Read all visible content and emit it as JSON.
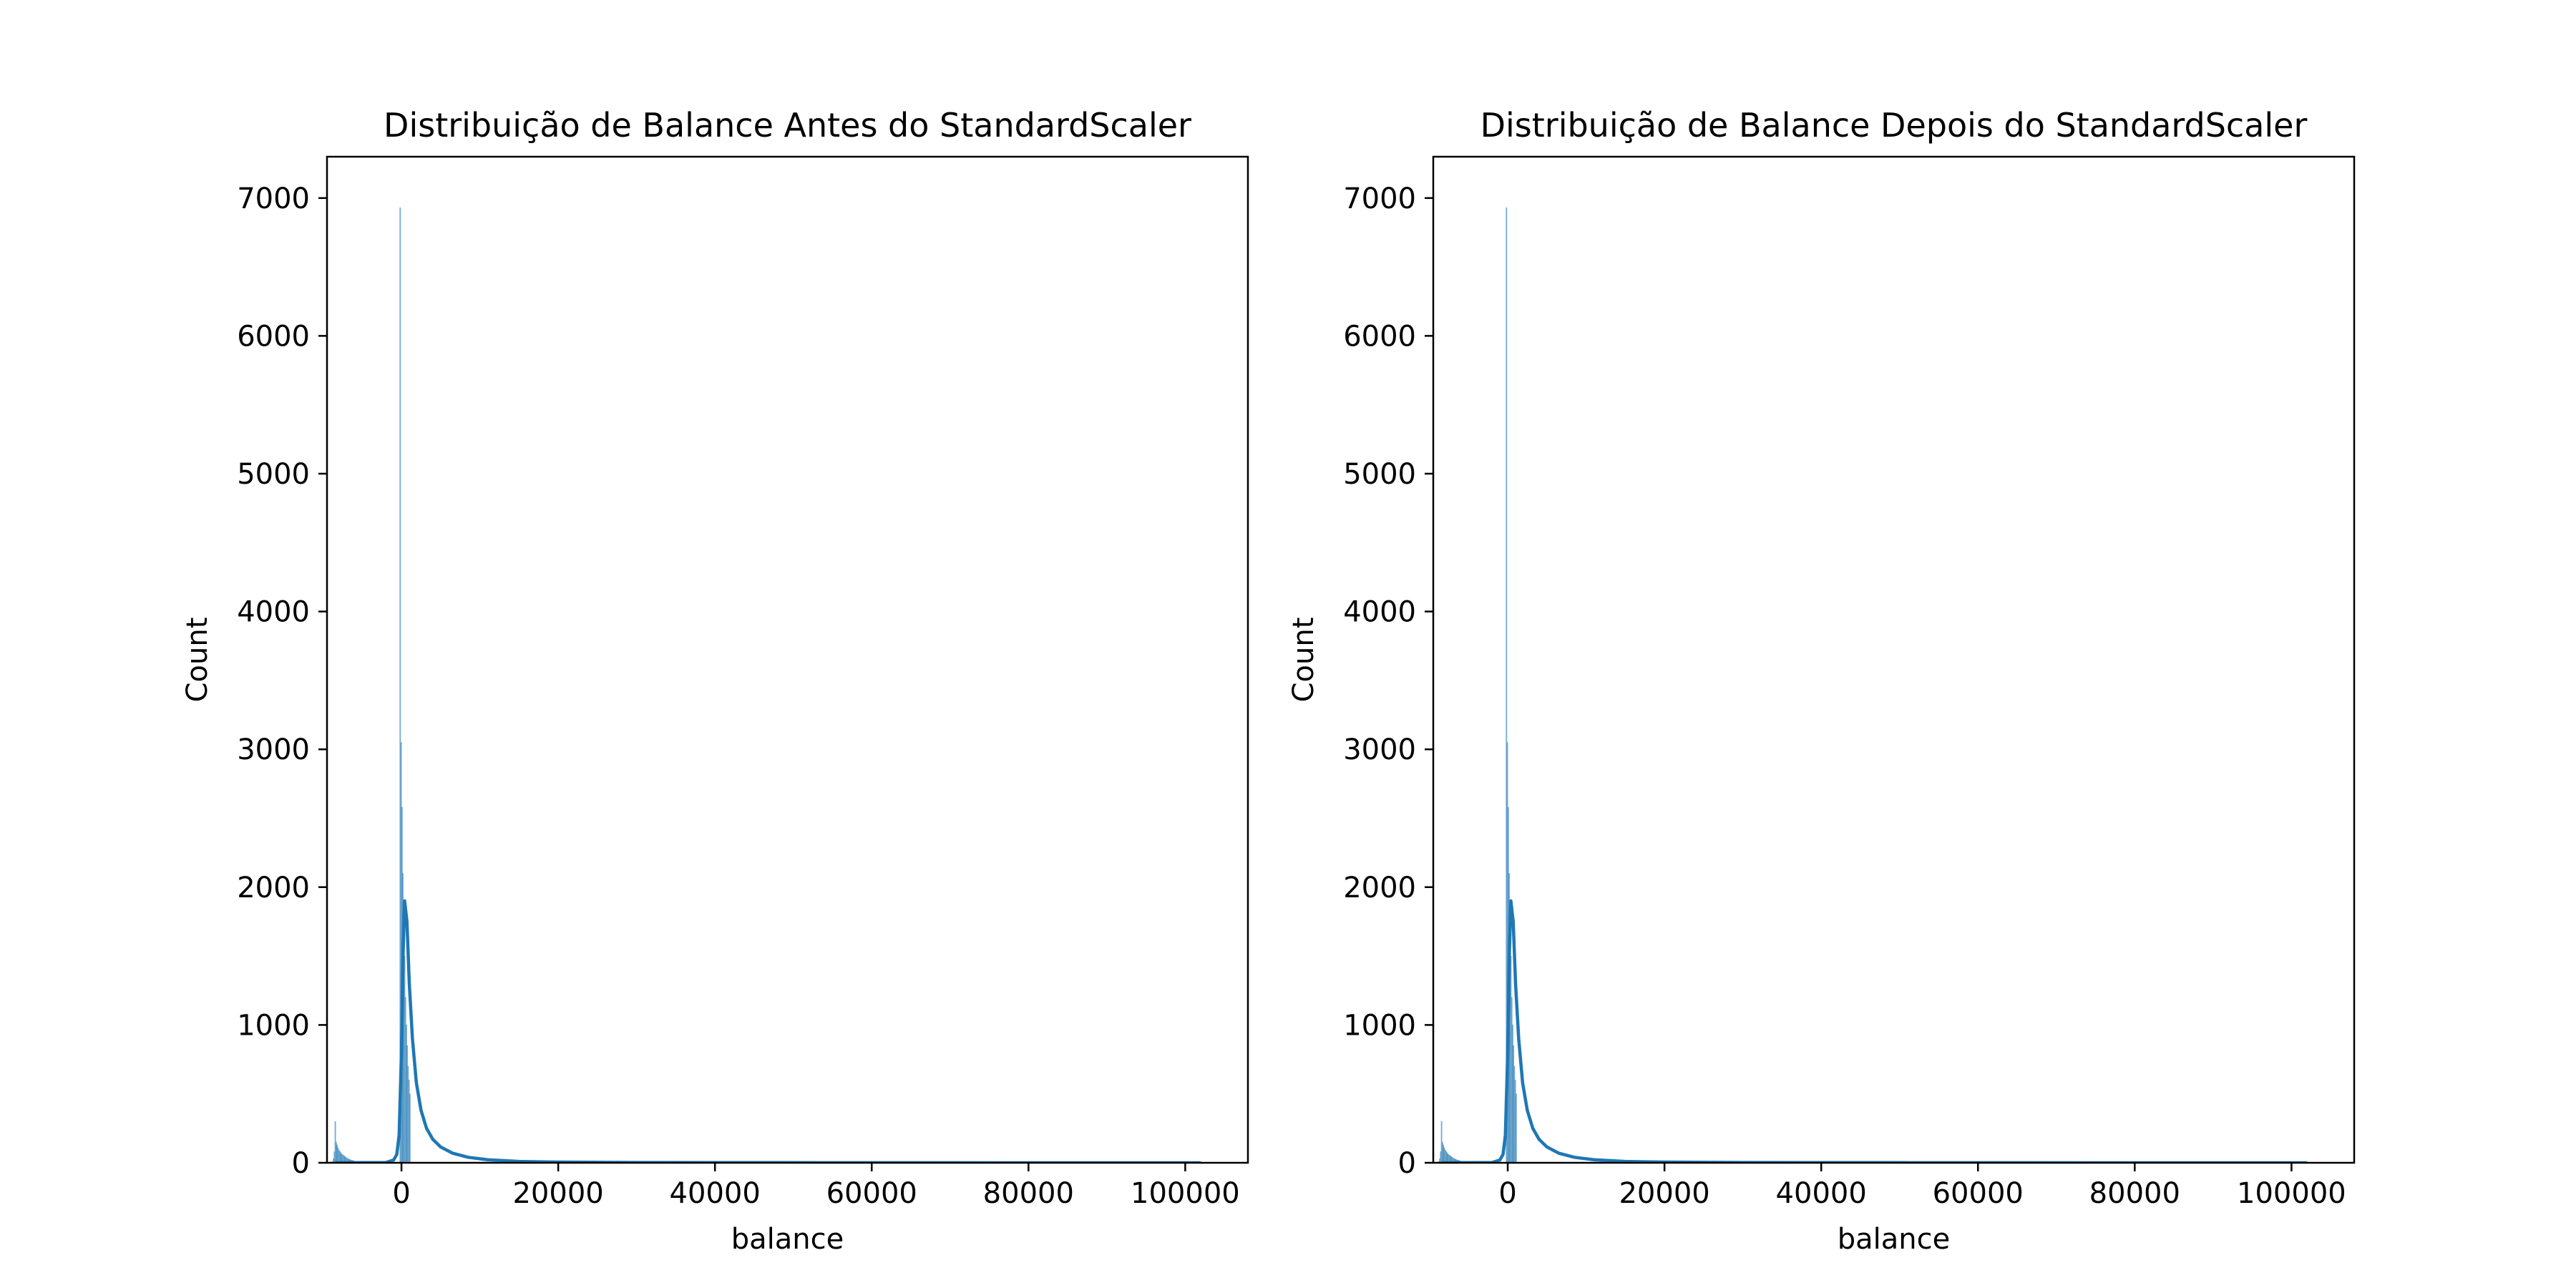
{
  "chart_data": [
    {
      "type": "histogram",
      "title": "Distribuição de Balance Antes do StandardScaler",
      "xlabel": "balance",
      "ylabel": "Count",
      "xlim": [
        -9500,
        108000
      ],
      "ylim": [
        0,
        7300
      ],
      "xticks": [
        0,
        20000,
        40000,
        60000,
        80000,
        100000
      ],
      "yticks": [
        0,
        1000,
        2000,
        3000,
        4000,
        5000,
        6000,
        7000
      ],
      "grid": false,
      "legend": "none",
      "color": "#1f77b4",
      "bins": {
        "start": -8500,
        "width": 112,
        "counts": {
          "-4": 4,
          "-3": 10,
          "-2": 30,
          "-1": 80,
          "0": 300,
          "1": 150,
          "2": 130,
          "3": 110,
          "4": 95,
          "5": 85,
          "6": 75,
          "7": 65,
          "8": 60,
          "9": 55,
          "10": 50,
          "11": 45,
          "12": 40,
          "13": 35,
          "14": 30,
          "15": 28,
          "16": 25,
          "17": 22,
          "18": 20,
          "19": 18,
          "20": 16,
          "21": 14,
          "22": 12,
          "23": 11,
          "24": 10,
          "25": 9,
          "26": 8,
          "27": 7,
          "28": 6,
          "29": 5,
          "30": 5,
          "31": 4,
          "32": 4,
          "33": 3,
          "34": 3,
          "35": 3,
          "36": 2,
          "37": 2,
          "38": 2,
          "39": 2,
          "40": 2,
          "74": 6930,
          "75": 3050,
          "76": 2580,
          "77": 2100,
          "78": 1850,
          "79": 1500,
          "80": 1200,
          "81": 1000,
          "82": 850,
          "83": 700,
          "84": 600,
          "85": 500
        }
      },
      "kde": {
        "x": [
          -8500,
          -2000,
          -1000,
          -600,
          -300,
          0,
          200,
          400,
          700,
          1000,
          1400,
          1900,
          2500,
          3200,
          4000,
          5000,
          6500,
          8500,
          11000,
          15000,
          20000,
          30000,
          50000,
          80000,
          102000
        ],
        "y": [
          0,
          2,
          20,
          60,
          200,
          800,
          1500,
          1900,
          1750,
          1300,
          900,
          580,
          380,
          250,
          170,
          115,
          70,
          40,
          22,
          10,
          5,
          2,
          1,
          0,
          0
        ]
      }
    },
    {
      "type": "histogram",
      "title": "Distribuição de Balance Depois do StandardScaler",
      "xlabel": "balance",
      "ylabel": "Count",
      "xlim": [
        -9500,
        108000
      ],
      "ylim": [
        0,
        7300
      ],
      "xticks": [
        0,
        20000,
        40000,
        60000,
        80000,
        100000
      ],
      "yticks": [
        0,
        1000,
        2000,
        3000,
        4000,
        5000,
        6000,
        7000
      ],
      "grid": false,
      "legend": "none",
      "color": "#1f77b4",
      "bins": {
        "start": -8500,
        "width": 112,
        "counts": {
          "-4": 4,
          "-3": 10,
          "-2": 30,
          "-1": 80,
          "0": 300,
          "1": 150,
          "2": 130,
          "3": 110,
          "4": 95,
          "5": 85,
          "6": 75,
          "7": 65,
          "8": 60,
          "9": 55,
          "10": 50,
          "11": 45,
          "12": 40,
          "13": 35,
          "14": 30,
          "15": 28,
          "16": 25,
          "17": 22,
          "18": 20,
          "19": 18,
          "20": 16,
          "21": 14,
          "22": 12,
          "23": 11,
          "24": 10,
          "25": 9,
          "26": 8,
          "27": 7,
          "28": 6,
          "29": 5,
          "30": 5,
          "31": 4,
          "32": 4,
          "33": 3,
          "34": 3,
          "35": 3,
          "36": 2,
          "37": 2,
          "38": 2,
          "39": 2,
          "40": 2,
          "74": 6930,
          "75": 3050,
          "76": 2580,
          "77": 2100,
          "78": 1850,
          "79": 1500,
          "80": 1200,
          "81": 1000,
          "82": 850,
          "83": 700,
          "84": 600,
          "85": 500
        }
      },
      "kde": {
        "x": [
          -8500,
          -2000,
          -1000,
          -600,
          -300,
          0,
          200,
          400,
          700,
          1000,
          1400,
          1900,
          2500,
          3200,
          4000,
          5000,
          6500,
          8500,
          11000,
          15000,
          20000,
          30000,
          50000,
          80000,
          102000
        ],
        "y": [
          0,
          2,
          20,
          60,
          200,
          800,
          1500,
          1900,
          1750,
          1300,
          900,
          580,
          380,
          250,
          170,
          115,
          70,
          40,
          22,
          10,
          5,
          2,
          1,
          0,
          0
        ]
      }
    }
  ]
}
